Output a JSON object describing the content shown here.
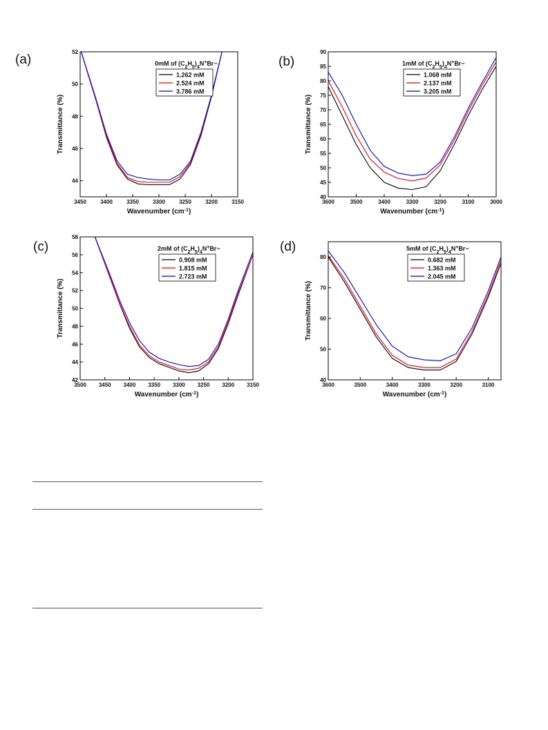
{
  "chart_data": [
    {
      "panel": "(a)",
      "type": "line",
      "legend_title": "0mM of (C2H5)4N+Br−",
      "legend_title_parts": {
        "a": "0mM of (C",
        "s1": "2",
        "b": "H",
        "s2": "5",
        "c": ")",
        "s3": "4",
        "d": "N",
        "sup": "+",
        "e": "Br−"
      },
      "xlabel": "Wavenumber (cm",
      "xlabel_sup": "-1",
      "xlabel_end": ")",
      "ylabel": "Transmittance (%)",
      "xlim": [
        3450,
        3150
      ],
      "ylim": [
        43,
        52
      ],
      "xticks": [
        3450,
        3400,
        3350,
        3300,
        3250,
        3200,
        3150
      ],
      "yticks": [
        44,
        46,
        48,
        50,
        52
      ],
      "x": [
        3450,
        3420,
        3400,
        3380,
        3360,
        3340,
        3320,
        3300,
        3280,
        3260,
        3240,
        3220,
        3200,
        3180
      ],
      "series": [
        {
          "name": "1.262 mM",
          "color": "#000000",
          "values": [
            52.2,
            49.0,
            46.7,
            45.0,
            44.1,
            43.8,
            43.75,
            43.75,
            43.75,
            44.1,
            45.0,
            46.8,
            49.2,
            52.0
          ]
        },
        {
          "name": "2.524 mM",
          "color": "#ff0000",
          "values": [
            52.2,
            49.0,
            46.8,
            45.1,
            44.2,
            43.95,
            43.9,
            43.9,
            43.9,
            44.25,
            45.1,
            46.9,
            49.3,
            52.0
          ]
        },
        {
          "name": "3.786 mM",
          "color": "#0000ff",
          "values": [
            52.2,
            49.1,
            46.9,
            45.25,
            44.4,
            44.2,
            44.1,
            44.05,
            44.05,
            44.4,
            45.2,
            47.0,
            49.3,
            52.0
          ]
        }
      ]
    },
    {
      "panel": "(b)",
      "type": "line",
      "legend_title": "1mM of (C2H5)4N+Br−",
      "legend_title_parts": {
        "a": "1mM of (C",
        "s1": "2",
        "b": "H",
        "s2": "5",
        "c": ")",
        "s3": "4",
        "d": "N",
        "sup": "+",
        "e": "Br−"
      },
      "xlabel": "Wavenumber (cm",
      "xlabel_sup": "-1",
      "xlabel_end": ")",
      "ylabel": "Transmittance (%)",
      "xlim": [
        3600,
        3000
      ],
      "ylim": [
        40,
        90
      ],
      "xticks": [
        3600,
        3500,
        3400,
        3300,
        3200,
        3100,
        3000
      ],
      "yticks": [
        40,
        45,
        50,
        55,
        60,
        65,
        70,
        75,
        80,
        85,
        90
      ],
      "x": [
        3600,
        3550,
        3500,
        3450,
        3400,
        3350,
        3300,
        3250,
        3200,
        3150,
        3100,
        3050,
        3000
      ],
      "series": [
        {
          "name": "1.068 mM",
          "color": "#000000",
          "values": [
            78,
            68,
            58,
            50,
            45,
            43,
            42.5,
            43.5,
            49,
            58,
            68,
            77,
            85
          ]
        },
        {
          "name": "2.137 mM",
          "color": "#ff0000",
          "values": [
            80,
            71,
            61,
            53,
            48.5,
            46.3,
            45.5,
            46.5,
            51,
            59.5,
            69.5,
            78.5,
            86.5
          ]
        },
        {
          "name": "3.205 mM",
          "color": "#0000ff",
          "values": [
            83,
            75,
            65,
            56,
            50.5,
            48.2,
            47.3,
            47.8,
            52,
            60.5,
            70.5,
            79.5,
            88
          ]
        }
      ]
    },
    {
      "panel": "(c)",
      "type": "line",
      "legend_title": "2mM of (C2H5)4N+Br−",
      "legend_title_parts": {
        "a": "2mM of (C",
        "s1": "2",
        "b": "H",
        "s2": "5",
        "c": ")",
        "s3": "4",
        "d": "N",
        "sup": "+",
        "e": "Br−"
      },
      "xlabel": "Wavenumber (cm",
      "xlabel_sup": "-1",
      "xlabel_end": ")",
      "ylabel": "Transmittance (%)",
      "xlim": [
        3500,
        3150
      ],
      "ylim": [
        42,
        58
      ],
      "xticks": [
        3500,
        3450,
        3400,
        3350,
        3300,
        3250,
        3200,
        3150
      ],
      "yticks": [
        42,
        44,
        46,
        48,
        50,
        52,
        54,
        56,
        58
      ],
      "x": [
        3470,
        3440,
        3420,
        3400,
        3380,
        3360,
        3340,
        3320,
        3300,
        3280,
        3260,
        3240,
        3220,
        3200,
        3180,
        3150
      ],
      "series": [
        {
          "name": "0.908 mM",
          "color": "#000000",
          "values": [
            58,
            53.5,
            50.5,
            47.8,
            45.7,
            44.5,
            43.8,
            43.4,
            43.0,
            42.8,
            43.0,
            43.8,
            45.5,
            48.3,
            51.5,
            56
          ]
        },
        {
          "name": "1.815 mM",
          "color": "#ff0000",
          "values": [
            58,
            53.6,
            50.6,
            48.0,
            45.9,
            44.7,
            44.0,
            43.6,
            43.2,
            43.1,
            43.3,
            44.0,
            45.7,
            48.5,
            51.7,
            56
          ]
        },
        {
          "name": "2.723 mM",
          "color": "#0000ff",
          "values": [
            58,
            53.8,
            50.9,
            48.4,
            46.4,
            45.1,
            44.4,
            44.0,
            43.7,
            43.5,
            43.6,
            44.3,
            46.0,
            48.8,
            52.0,
            56.3
          ]
        }
      ]
    },
    {
      "panel": "(d)",
      "type": "line",
      "legend_title": "5mM of (C2H5)4N+Br−",
      "legend_title_parts": {
        "a": "5mM of (C",
        "s1": "2",
        "b": "H",
        "s2": "5",
        "c": ")",
        "s3": "4",
        "d": "N",
        "sup": "+",
        "e": "Br−"
      },
      "xlabel": "Wavenumber (cm",
      "xlabel_sup": "-1",
      "xlabel_end": ")",
      "ylabel": "Transmittance (%)",
      "xlim": [
        3600,
        3060
      ],
      "ylim": [
        40,
        85
      ],
      "xticks": [
        3600,
        3500,
        3400,
        3300,
        3200,
        3100
      ],
      "yticks": [
        40,
        50,
        60,
        70,
        80
      ],
      "x": [
        3600,
        3550,
        3500,
        3450,
        3400,
        3350,
        3300,
        3250,
        3200,
        3150,
        3100,
        3060
      ],
      "series": [
        {
          "name": "0.682 mM",
          "color": "#000000",
          "values": [
            80,
            72,
            63,
            54,
            47,
            44,
            43.2,
            43.2,
            46,
            55,
            67,
            78
          ]
        },
        {
          "name": "1.363 mM",
          "color": "#ff0000",
          "values": [
            80.5,
            73,
            64,
            55,
            48,
            44.8,
            44.0,
            44.0,
            46.8,
            55.8,
            67.8,
            79
          ]
        },
        {
          "name": "2.045 mM",
          "color": "#0000ff",
          "values": [
            82,
            75,
            66.5,
            58,
            51,
            47.5,
            46.5,
            46.2,
            48.5,
            57,
            69,
            80
          ]
        }
      ]
    }
  ]
}
